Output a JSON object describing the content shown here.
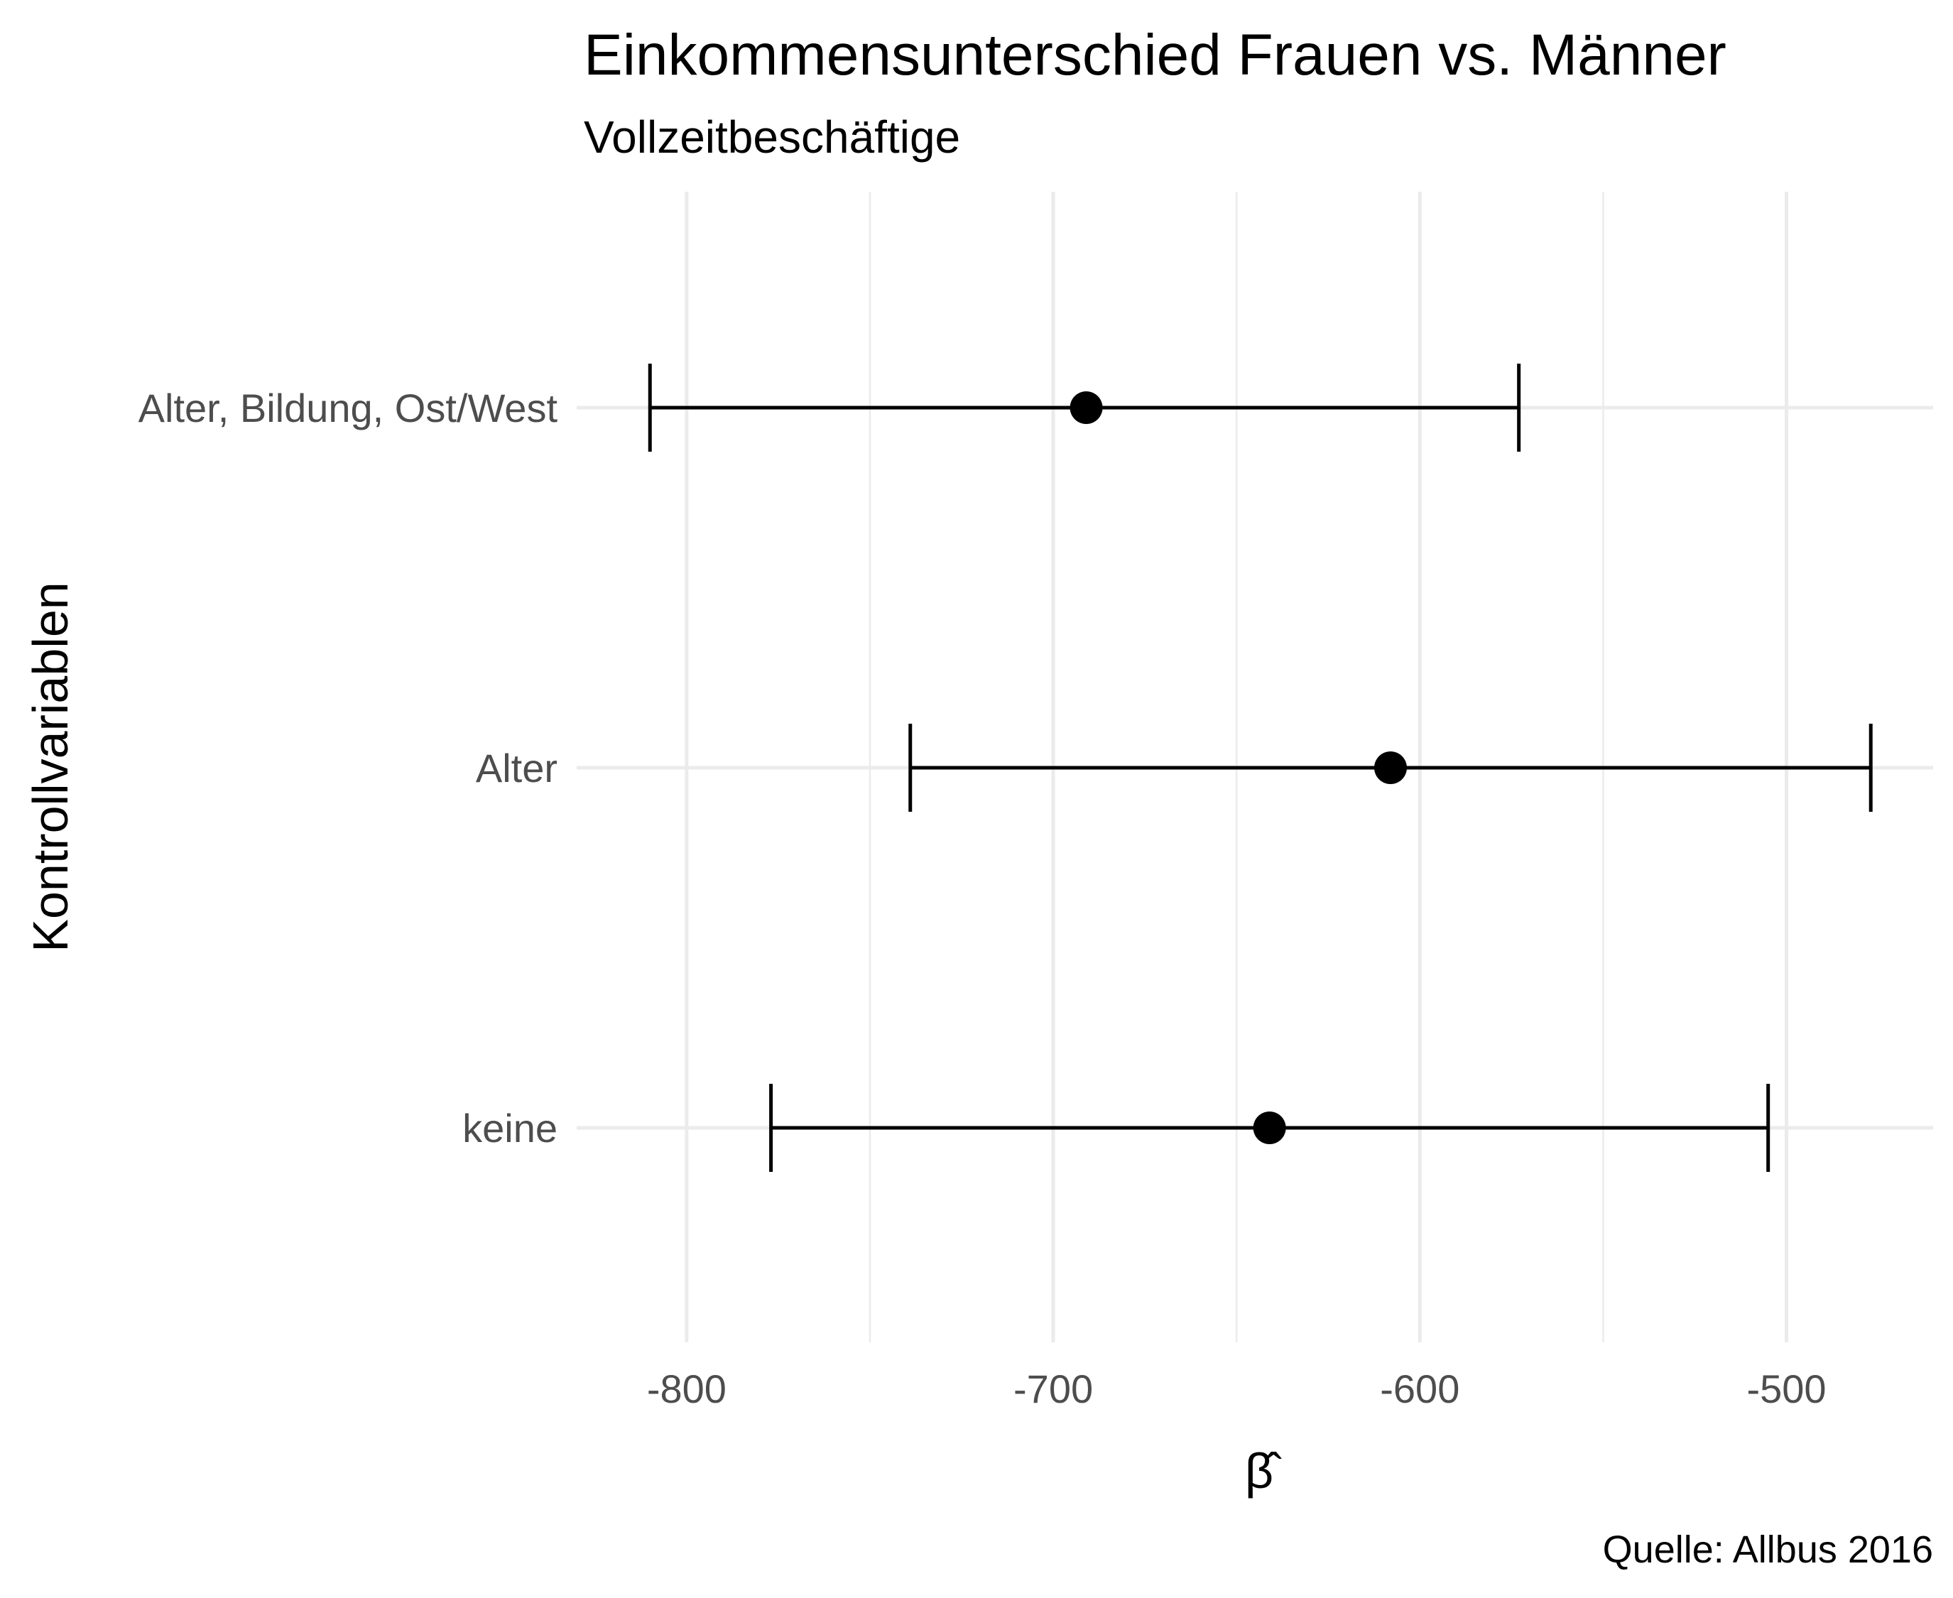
{
  "chart_data": {
    "type": "scatter",
    "title": "Einkommensunterschied Frauen vs. Männer",
    "subtitle": "Vollzeitbeschäftige",
    "xlabel": "β̂",
    "ylabel": "Kontrollvariablen",
    "caption": "Quelle: Allbus 2016",
    "xlim": [
      -830,
      -460
    ],
    "x_ticks": [
      -800,
      -700,
      -600,
      -500
    ],
    "x_tick_labels": [
      "-800",
      "-700",
      "-600",
      "-500"
    ],
    "grid": true,
    "categories": [
      "keine",
      "Alter",
      "Alter, Bildung, Ost/West"
    ],
    "points": [
      {
        "category": "keine",
        "estimate": -641,
        "lower": -777,
        "upper": -505
      },
      {
        "category": "Alter",
        "estimate": -608,
        "lower": -739,
        "upper": -477
      },
      {
        "category": "Alter, Bildung, Ost/West",
        "estimate": -691,
        "lower": -810,
        "upper": -573
      }
    ],
    "point_color": "#000000"
  }
}
